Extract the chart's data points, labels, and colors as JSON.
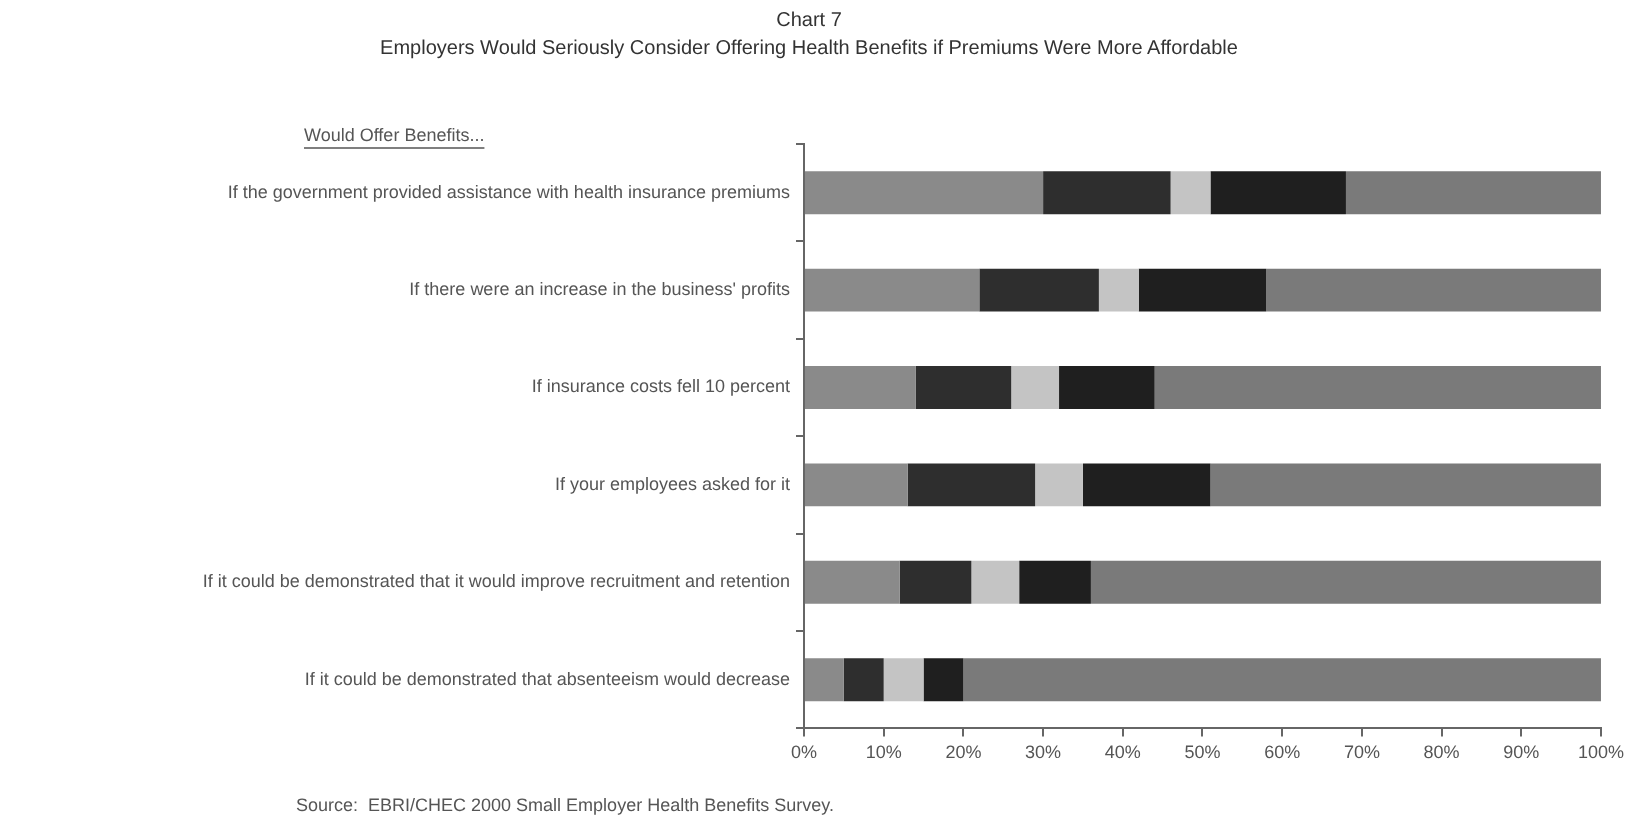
{
  "chart_data": {
    "type": "bar",
    "orientation": "horizontal",
    "stacked": true,
    "title": "Chart 7",
    "subtitle": "Employers Would Seriously Consider Offering Health Benefits if Premiums Were More Affordable",
    "categories": [
      "If the government provided assistance with health insurance premiums",
      "If there were an increase in the business' profits",
      "If insurance costs fell 10 percent",
      "If your employees asked for it",
      "If it could be demonstrated that it would improve recruitment and retention",
      "If it could be demonstrated that absenteeism would decrease"
    ],
    "series": [
      {
        "color": "#8a8a8a",
        "values": [
          30,
          22,
          14,
          13,
          12,
          5
        ]
      },
      {
        "color": "#2e2e2e",
        "values": [
          16,
          15,
          12,
          16,
          9,
          5
        ]
      },
      {
        "color": "#c4c4c4",
        "values": [
          5,
          5,
          6,
          6,
          6,
          5
        ]
      },
      {
        "color": "#1f1f1f",
        "values": [
          17,
          16,
          12,
          16,
          9,
          5
        ]
      },
      {
        "color": "#7a7a7a",
        "values": [
          32,
          42,
          56,
          49,
          64,
          80
        ]
      }
    ],
    "xlim": [
      0,
      100
    ],
    "xticks": [
      {
        "value": 0,
        "label": "0%"
      },
      {
        "value": 10,
        "label": "10%"
      },
      {
        "value": 20,
        "label": "20%"
      },
      {
        "value": 30,
        "label": "30%"
      },
      {
        "value": 40,
        "label": "40%"
      },
      {
        "value": 50,
        "label": "50%"
      },
      {
        "value": 60,
        "label": "60%"
      },
      {
        "value": 70,
        "label": "70%"
      },
      {
        "value": 80,
        "label": "80%"
      },
      {
        "value": 90,
        "label": "90%"
      },
      {
        "value": 100,
        "label": "100%"
      }
    ],
    "grid": false,
    "legend": false,
    "annotations": [
      "Would Offer Benefits...",
      "Source:  EBRI/CHEC 2000 Small Employer Health Benefits Survey."
    ]
  }
}
